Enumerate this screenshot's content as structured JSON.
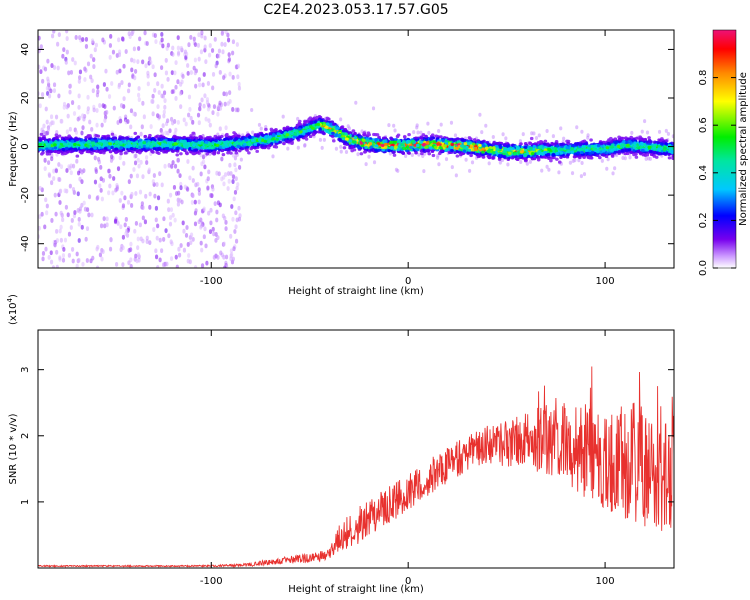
{
  "title": "C2E4.2023.053.17.57.G05",
  "chart_data": [
    {
      "type": "heatmap",
      "xlabel": "Height of straight line (km)",
      "ylabel": "Frequency (Hz)",
      "xlim": [
        -188,
        135
      ],
      "ylim": [
        -50,
        48
      ],
      "xticks": [
        -100,
        0,
        100
      ],
      "xtick_labels": [
        "-100",
        "0",
        "100"
      ],
      "yticks": [
        -40,
        -20,
        0,
        20,
        40
      ],
      "ytick_labels": [
        "-40",
        "-20",
        "0",
        "20",
        "40"
      ],
      "ridge": {
        "x": [
          -188,
          -160,
          -120,
          -100,
          -85,
          -70,
          -55,
          -45,
          -38,
          -30,
          -20,
          -10,
          0,
          10,
          20,
          30,
          40,
          50,
          60,
          70,
          80,
          90,
          100,
          110,
          120,
          135
        ],
        "y": [
          0.5,
          1,
          1,
          0.5,
          1.5,
          3,
          6,
          9,
          7,
          3,
          1,
          0.5,
          0.5,
          1,
          0.5,
          0,
          -1,
          -2,
          -2,
          -1.5,
          -1.5,
          -1,
          -1,
          0.5,
          0,
          -1
        ]
      },
      "colorbar": {
        "label": "Normalized spectral amplitude",
        "range": [
          0,
          1
        ],
        "ticks": [
          0.0,
          0.2,
          0.4,
          0.6,
          0.8
        ],
        "tick_labels": [
          "0.0",
          "0.2",
          "0.4",
          "0.6",
          "0.8"
        ]
      },
      "grid": false
    },
    {
      "type": "line",
      "xlabel": "Height of straight line (km)",
      "ylabel": "SNR (10 * v/v)",
      "multiplier": "(x10",
      "multiplier_exp": "4",
      "multiplier_close": ")",
      "xlim": [
        -188,
        135
      ],
      "ylim": [
        0,
        3.6
      ],
      "xticks": [
        -100,
        0,
        100
      ],
      "xtick_labels": [
        "-100",
        "0",
        "100"
      ],
      "yticks": [
        1,
        2,
        3
      ],
      "ytick_labels": [
        "1",
        "2",
        "3"
      ],
      "series": [
        {
          "color": "#e8312e",
          "envelope": {
            "x": [
              -188,
              -150,
              -110,
              -85,
              -75,
              -65,
              -50,
              -40,
              -35,
              -25,
              -15,
              -5,
              0,
              10,
              20,
              30,
              40,
              50,
              60,
              70,
              80,
              90,
              100,
              110,
              120,
              130,
              135
            ],
            "mean": [
              0.03,
              0.03,
              0.03,
              0.04,
              0.07,
              0.11,
              0.15,
              0.2,
              0.45,
              0.65,
              0.85,
              1.05,
              1.15,
              1.35,
              1.55,
              1.72,
              1.85,
              1.88,
              1.92,
              1.92,
              1.85,
              1.78,
              1.7,
              1.62,
              1.55,
              1.5,
              1.5
            ],
            "amp": [
              0.01,
              0.01,
              0.01,
              0.02,
              0.04,
              0.05,
              0.07,
              0.08,
              0.22,
              0.28,
              0.28,
              0.28,
              0.28,
              0.28,
              0.28,
              0.28,
              0.3,
              0.35,
              0.45,
              0.55,
              0.65,
              0.72,
              0.8,
              0.88,
              0.95,
              1.0,
              1.0
            ]
          }
        }
      ],
      "grid": false
    }
  ]
}
